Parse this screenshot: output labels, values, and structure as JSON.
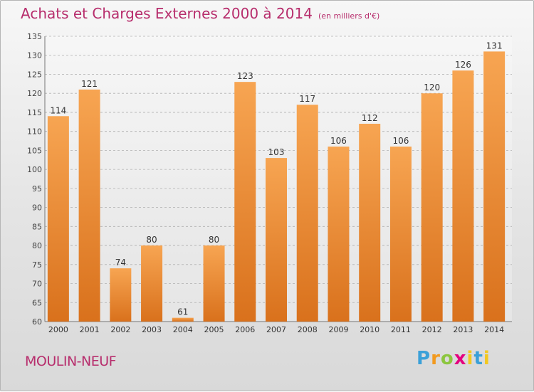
{
  "header": {
    "title": "Achats et Charges Externes 2000 à 2014",
    "unit": "(en milliers d'€)"
  },
  "footer": {
    "city": "MOULIN-NEUF",
    "brand": "Proxiti"
  },
  "colors": {
    "accent": "#b72d6c",
    "bar_top": "#f7a552",
    "bar_bottom": "#d9711c"
  },
  "chart_data": {
    "type": "bar",
    "categories": [
      "2000",
      "2001",
      "2002",
      "2003",
      "2004",
      "2005",
      "2006",
      "2007",
      "2008",
      "2009",
      "2010",
      "2011",
      "2012",
      "2013",
      "2014"
    ],
    "values": [
      114,
      121,
      74,
      80,
      61,
      80,
      123,
      103,
      117,
      106,
      112,
      106,
      120,
      126,
      131
    ],
    "ylim": [
      60,
      135
    ],
    "yticks": [
      60,
      65,
      70,
      75,
      80,
      85,
      90,
      95,
      100,
      105,
      110,
      115,
      120,
      125,
      130,
      135
    ],
    "grid": true,
    "data_labels": true
  }
}
